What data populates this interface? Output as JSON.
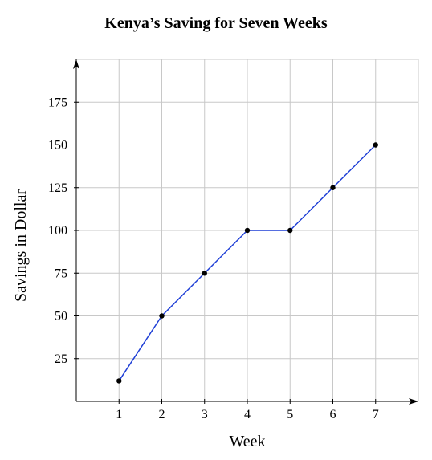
{
  "chart_data": {
    "type": "line",
    "title": "Kenya’s Saving for Seven Weeks",
    "xlabel": "Week",
    "ylabel": "Savings in Dollar",
    "x": [
      1,
      2,
      3,
      4,
      5,
      6,
      7
    ],
    "series": [
      {
        "values": [
          12,
          50,
          75,
          100,
          100,
          125,
          150
        ]
      }
    ],
    "xticks": [
      1,
      2,
      3,
      4,
      5,
      6,
      7
    ],
    "yticks": [
      25,
      50,
      75,
      100,
      125,
      150,
      175
    ],
    "xlim": [
      0,
      8
    ],
    "ylim": [
      0,
      200
    ],
    "grid": true,
    "colors": {
      "line": "#1f3fd6",
      "marker": "#000000",
      "grid": "#c8c8c8"
    }
  }
}
